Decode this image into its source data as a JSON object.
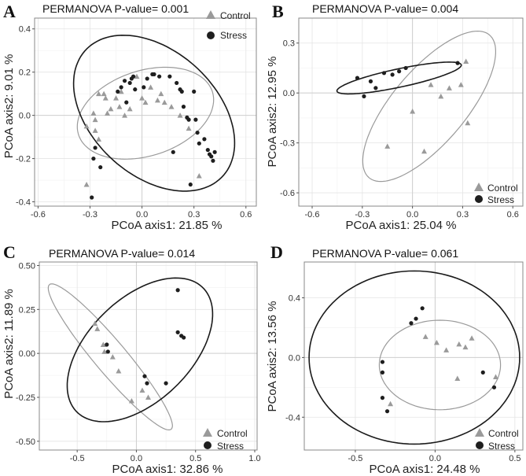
{
  "chart_data": [
    {
      "panel": "A",
      "type": "scatter",
      "title": "PERMANOVA P-value= 0.001",
      "xlabel": "PCoA axis1:  21.85 %",
      "ylabel": "PCoA axis2:  9.01 %",
      "xlim": [
        -0.62,
        0.66
      ],
      "ylim": [
        -0.42,
        0.45
      ],
      "xticks": [
        -0.6,
        -0.3,
        0.0,
        0.3,
        0.6
      ],
      "xticklabels": [
        "-0.6",
        "-0.3",
        "0.0",
        "0.3",
        "0.6"
      ],
      "yticks": [
        -0.4,
        -0.2,
        0.0,
        0.2,
        0.4
      ],
      "yticklabels": [
        "-0.4",
        "-0.2",
        "0.0",
        "0.2",
        "0.4"
      ],
      "legend": [
        "Control",
        "Stress"
      ],
      "series": [
        {
          "name": "Control",
          "marker": "triangle",
          "color": "#9a9a9a",
          "points": [
            [
              -0.32,
              -0.05
            ],
            [
              -0.32,
              -0.32
            ],
            [
              -0.28,
              0.01
            ],
            [
              -0.27,
              -0.02
            ],
            [
              -0.27,
              -0.07
            ],
            [
              -0.25,
              -0.11
            ],
            [
              -0.25,
              0.1
            ],
            [
              -0.22,
              0.1
            ],
            [
              -0.21,
              0.08
            ],
            [
              -0.2,
              0.01
            ],
            [
              -0.18,
              0.03
            ],
            [
              -0.15,
              0.08
            ],
            [
              -0.13,
              0.04
            ],
            [
              -0.12,
              0.11
            ],
            [
              -0.1,
              0.0
            ],
            [
              -0.07,
              0.03
            ],
            [
              -0.03,
              0.18
            ],
            [
              0.0,
              0.08
            ],
            [
              0.02,
              0.06
            ],
            [
              0.05,
              0.13
            ],
            [
              0.09,
              0.07
            ],
            [
              0.11,
              0.1
            ],
            [
              0.13,
              0.06
            ],
            [
              0.17,
              0.04
            ],
            [
              0.22,
              0.0
            ],
            [
              0.27,
              -0.06
            ],
            [
              0.33,
              -0.28
            ]
          ]
        },
        {
          "name": "Stress",
          "marker": "circle",
          "color": "#1e1e1e",
          "points": [
            [
              -0.29,
              -0.38
            ],
            [
              -0.28,
              -0.2
            ],
            [
              -0.27,
              -0.15
            ],
            [
              -0.24,
              -0.24
            ],
            [
              -0.14,
              0.11
            ],
            [
              -0.12,
              0.13
            ],
            [
              -0.1,
              0.16
            ],
            [
              -0.09,
              0.06
            ],
            [
              -0.07,
              0.15
            ],
            [
              -0.06,
              0.17
            ],
            [
              -0.05,
              0.18
            ],
            [
              -0.04,
              0.12
            ],
            [
              0.01,
              0.13
            ],
            [
              0.03,
              0.17
            ],
            [
              0.06,
              0.19
            ],
            [
              0.07,
              0.19
            ],
            [
              0.1,
              0.18
            ],
            [
              0.16,
              0.18
            ],
            [
              0.18,
              -0.17
            ],
            [
              0.2,
              0.15
            ],
            [
              0.22,
              0.12
            ],
            [
              0.23,
              0.11
            ],
            [
              0.24,
              0.04
            ],
            [
              0.26,
              -0.01
            ],
            [
              0.27,
              -0.02
            ],
            [
              0.28,
              -0.32
            ],
            [
              0.3,
              0.11
            ],
            [
              0.31,
              -0.02
            ],
            [
              0.32,
              -0.08
            ],
            [
              0.33,
              -0.13
            ],
            [
              0.36,
              -0.11
            ],
            [
              0.38,
              -0.16
            ],
            [
              0.39,
              -0.18
            ],
            [
              0.4,
              -0.19
            ],
            [
              0.41,
              -0.21
            ],
            [
              0.42,
              -0.17
            ]
          ]
        }
      ],
      "ellipses": [
        {
          "group": "Control",
          "color": "#9a9a9a",
          "cx": 0.02,
          "cy": 0.01,
          "rx": 0.4,
          "ry": 0.2,
          "angle": 12
        },
        {
          "group": "Stress",
          "color": "#1a1a1a",
          "cx": 0.07,
          "cy": 0.01,
          "rx": 0.5,
          "ry": 0.31,
          "angle": -28
        }
      ]
    },
    {
      "panel": "B",
      "type": "scatter",
      "title": "PERMANOVA P-value= 0.004",
      "xlabel": "PCoA axis1:  25.04 %",
      "ylabel": "PCoA axis2:  12.95 %",
      "xlim": [
        -0.68,
        0.66
      ],
      "ylim": [
        -0.68,
        0.45
      ],
      "xticks": [
        -0.6,
        -0.3,
        0.0,
        0.3,
        0.6
      ],
      "xticklabels": [
        "-0.6",
        "-0.3",
        "0.0",
        "0.3",
        "0.6"
      ],
      "yticks": [
        -0.6,
        -0.3,
        0.0,
        0.3
      ],
      "yticklabels": [
        "-0.6",
        "-0.3",
        "0.0",
        "0.3"
      ],
      "legend": [
        "Control",
        "Stress"
      ],
      "series": [
        {
          "name": "Control",
          "marker": "triangle",
          "color": "#9a9a9a",
          "points": [
            [
              -0.15,
              -0.32
            ],
            [
              0.0,
              -0.11
            ],
            [
              0.07,
              -0.35
            ],
            [
              0.11,
              0.05
            ],
            [
              0.17,
              -0.02
            ],
            [
              0.22,
              0.03
            ],
            [
              0.29,
              0.05
            ],
            [
              0.32,
              0.19
            ],
            [
              0.33,
              -0.18
            ]
          ]
        },
        {
          "name": "Stress",
          "marker": "circle",
          "color": "#1e1e1e",
          "points": [
            [
              -0.33,
              0.09
            ],
            [
              -0.29,
              -0.02
            ],
            [
              -0.25,
              0.07
            ],
            [
              -0.22,
              0.03
            ],
            [
              -0.17,
              0.12
            ],
            [
              -0.12,
              0.11
            ],
            [
              -0.08,
              0.13
            ],
            [
              -0.04,
              0.15
            ],
            [
              0.27,
              0.18
            ]
          ]
        }
      ],
      "ellipses": [
        {
          "group": "Control",
          "color": "#9a9a9a",
          "cx": 0.1,
          "cy": -0.08,
          "rx": 0.56,
          "ry": 0.22,
          "angle": 50
        },
        {
          "group": "Stress",
          "color": "#1a1a1a",
          "cx": -0.08,
          "cy": 0.09,
          "rx": 0.38,
          "ry": 0.055,
          "angle": 12
        }
      ]
    },
    {
      "panel": "C",
      "type": "scatter",
      "title": "PERMANOVA P-value= 0.014",
      "xlabel": "PCoA axis1:  32.86 %",
      "ylabel": "PCoA axis2:  11.89 %",
      "xlim": [
        -0.82,
        1.02
      ],
      "ylim": [
        -0.55,
        0.52
      ],
      "xticks": [
        -0.5,
        0.0,
        0.5,
        1.0
      ],
      "xticklabels": [
        "-0.5",
        "0.0",
        "0.5",
        "1.0"
      ],
      "yticks": [
        -0.5,
        -0.25,
        0.0,
        0.25,
        0.5
      ],
      "yticklabels": [
        "-0.50",
        "-0.25",
        "0.00",
        "0.25",
        "0.50"
      ],
      "legend": [
        "Control",
        "Stress"
      ],
      "series": [
        {
          "name": "Control",
          "marker": "triangle",
          "color": "#9a9a9a",
          "points": [
            [
              -0.35,
              0.17
            ],
            [
              -0.33,
              0.14
            ],
            [
              -0.28,
              0.05
            ],
            [
              -0.27,
              0.01
            ],
            [
              -0.2,
              -0.02
            ],
            [
              -0.15,
              -0.1
            ],
            [
              0.05,
              -0.21
            ],
            [
              0.1,
              -0.25
            ],
            [
              -0.04,
              -0.27
            ]
          ]
        },
        {
          "name": "Stress",
          "marker": "circle",
          "color": "#1e1e1e",
          "points": [
            [
              -0.25,
              0.05
            ],
            [
              -0.24,
              0.01
            ],
            [
              0.07,
              -0.13
            ],
            [
              0.09,
              -0.17
            ],
            [
              0.25,
              -0.17
            ],
            [
              0.35,
              0.36
            ],
            [
              0.35,
              0.12
            ],
            [
              0.38,
              0.1
            ],
            [
              0.4,
              0.09
            ]
          ]
        }
      ],
      "ellipses": [
        {
          "group": "Control",
          "color": "#9a9a9a",
          "cx": -0.22,
          "cy": -0.02,
          "rx": 0.66,
          "ry": 0.11,
          "angle": -38
        },
        {
          "group": "Stress",
          "color": "#1a1a1a",
          "cx": 0.03,
          "cy": 0.02,
          "rx": 0.66,
          "ry": 0.33,
          "angle": 25
        }
      ]
    },
    {
      "panel": "D",
      "type": "scatter",
      "title": "PERMANOVA P-value= 0.061",
      "xlabel": "PCoA axis1:  24.48 %",
      "ylabel": "PCoA axis2:  13.56 %",
      "xlim": [
        -0.82,
        0.55
      ],
      "ylim": [
        -0.62,
        0.64
      ],
      "xticks": [
        -0.5,
        0.0,
        0.5
      ],
      "xticklabels": [
        "-0.5",
        "0.0",
        "0.5"
      ],
      "yticks": [
        -0.4,
        0.0,
        0.4
      ],
      "yticklabels": [
        "-0.4",
        "0.0",
        "0.4"
      ],
      "legend": [
        "Control",
        "Stress"
      ],
      "series": [
        {
          "name": "Control",
          "marker": "triangle",
          "color": "#9a9a9a",
          "points": [
            [
              -0.28,
              -0.31
            ],
            [
              -0.06,
              0.14
            ],
            [
              0.01,
              0.1
            ],
            [
              0.07,
              0.05
            ],
            [
              0.14,
              -0.14
            ],
            [
              0.15,
              0.09
            ],
            [
              0.19,
              0.07
            ],
            [
              0.23,
              0.13
            ],
            [
              0.38,
              -0.13
            ]
          ]
        },
        {
          "name": "Stress",
          "marker": "circle",
          "color": "#1e1e1e",
          "points": [
            [
              -0.33,
              -0.03
            ],
            [
              -0.33,
              -0.1
            ],
            [
              -0.33,
              -0.27
            ],
            [
              -0.15,
              0.23
            ],
            [
              -0.12,
              0.26
            ],
            [
              -0.08,
              0.33
            ],
            [
              0.3,
              -0.1
            ],
            [
              0.37,
              -0.2
            ],
            [
              -0.3,
              -0.36
            ]
          ]
        }
      ],
      "ellipses": [
        {
          "group": "Control",
          "color": "#9a9a9a",
          "cx": 0.03,
          "cy": -0.05,
          "rx": 0.38,
          "ry": 0.3,
          "angle": 0
        },
        {
          "group": "Stress",
          "color": "#1a1a1a",
          "cx": -0.13,
          "cy": 0.0,
          "rx": 0.66,
          "ry": 0.58,
          "angle": 0
        }
      ]
    }
  ]
}
